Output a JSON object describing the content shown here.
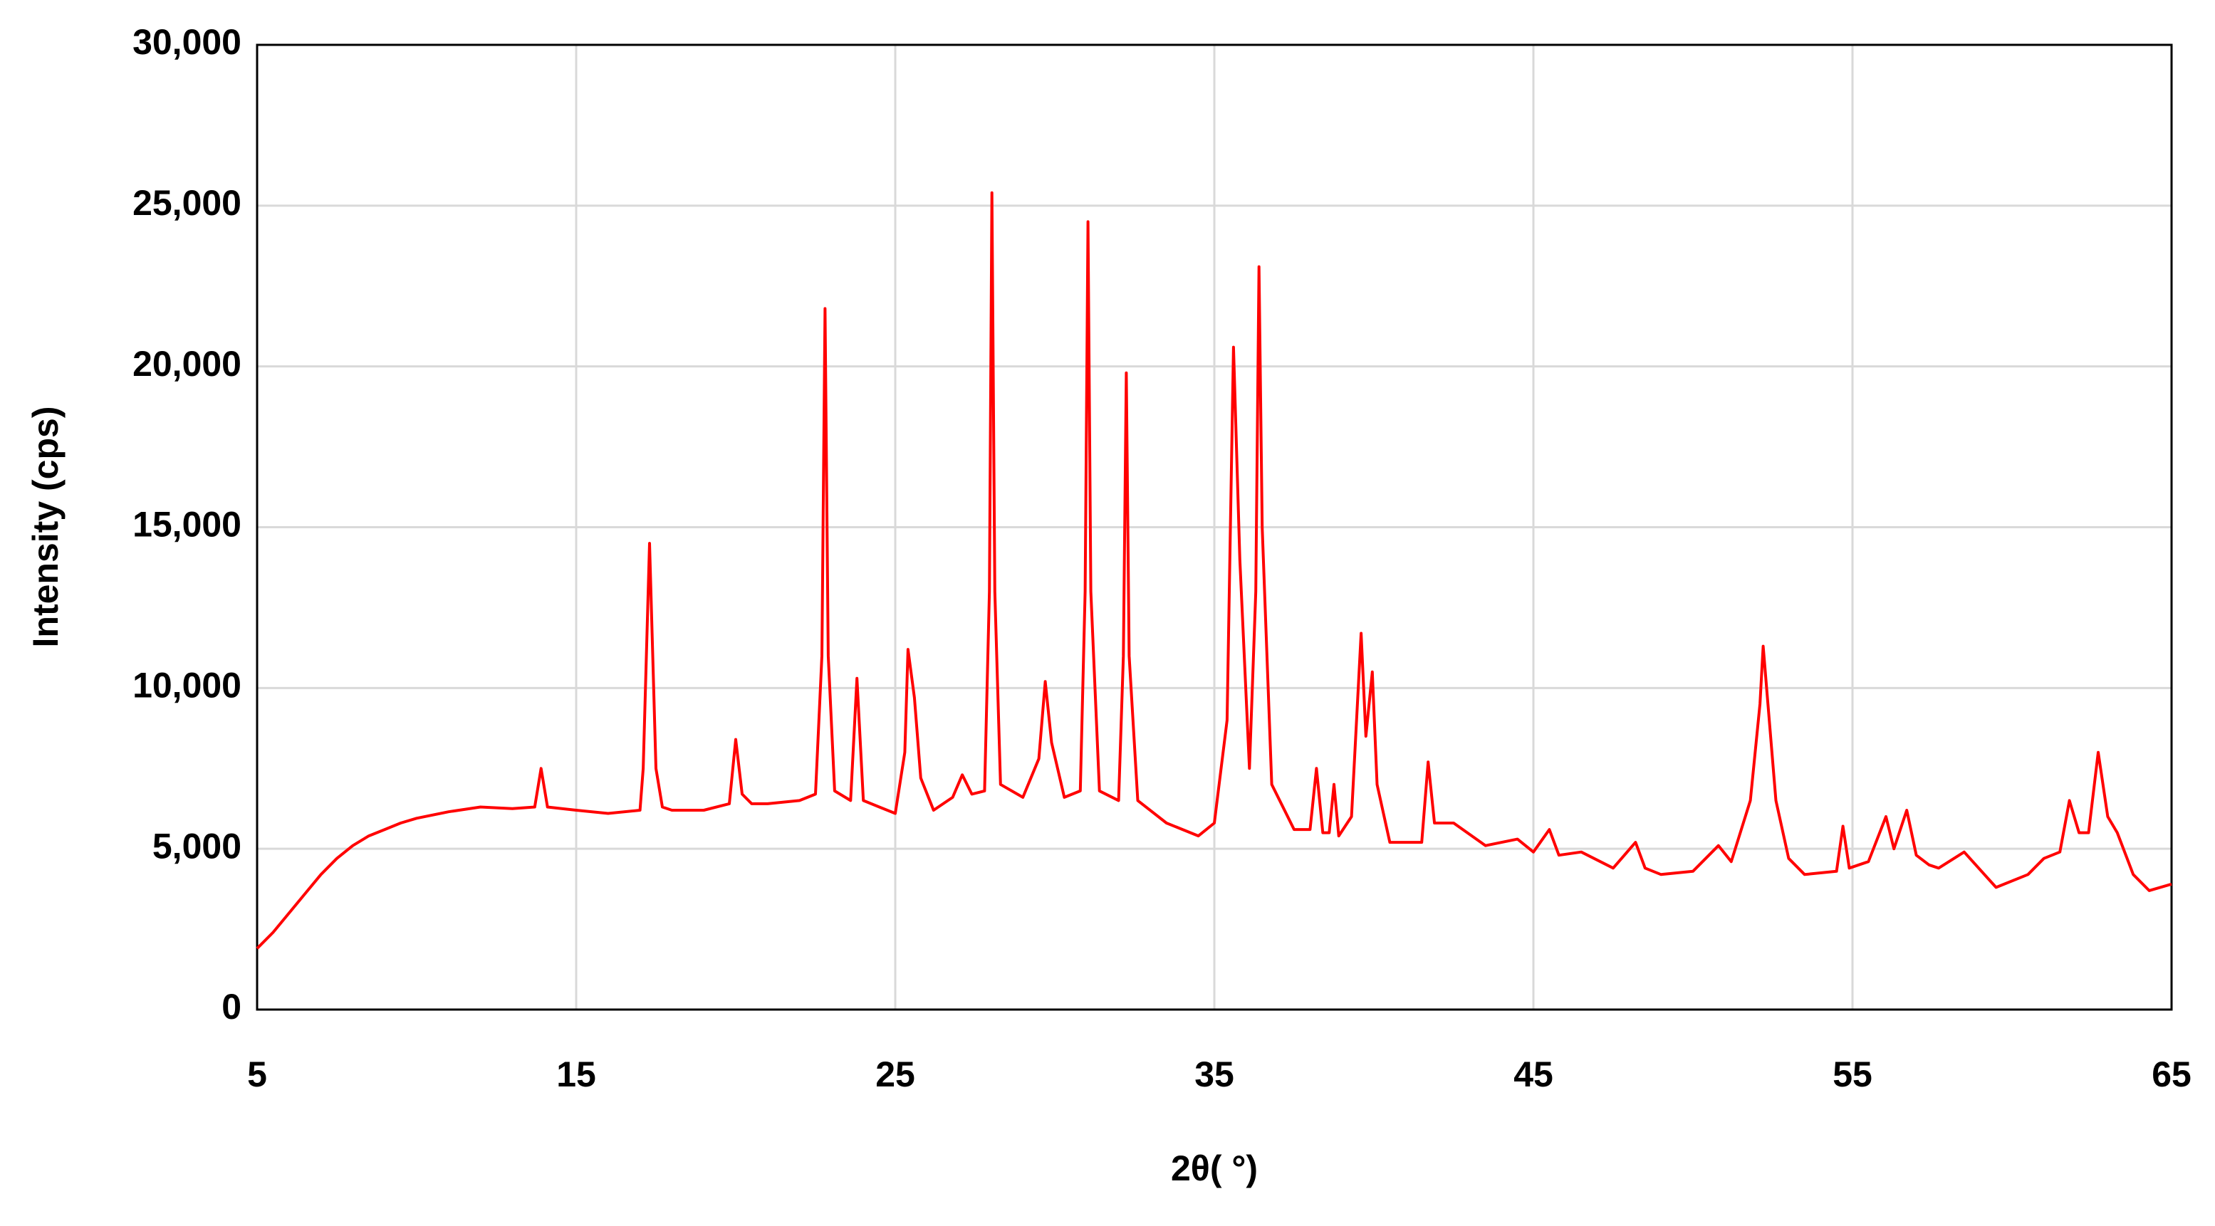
{
  "chart_data": {
    "type": "line",
    "xlabel": "2θ( °)",
    "ylabel": "Intensity (cps)",
    "x": [
      5,
      5.5,
      6,
      6.5,
      7,
      7.5,
      8,
      8.5,
      9,
      9.5,
      10,
      11,
      12,
      13,
      13.7,
      13.9,
      14.1,
      15,
      16,
      17,
      17.1,
      17.3,
      17.5,
      17.7,
      18,
      19,
      19.8,
      20,
      20.2,
      20.5,
      21,
      22,
      22.5,
      22.7,
      22.8,
      22.9,
      23.1,
      23.6,
      23.8,
      24.0,
      24.5,
      25,
      25.3,
      25.4,
      25.6,
      25.8,
      26.2,
      26.8,
      27.1,
      27.4,
      27.8,
      27.95,
      28.03,
      28.12,
      28.3,
      29,
      29.5,
      29.7,
      29.9,
      30.3,
      30.8,
      30.95,
      31.04,
      31.13,
      31.4,
      32.0,
      32.15,
      32.24,
      32.33,
      32.6,
      33.5,
      34.5,
      35.0,
      35.4,
      35.6,
      35.8,
      36.1,
      36.3,
      36.4,
      36.5,
      36.8,
      37.5,
      38.0,
      38.2,
      38.4,
      38.6,
      38.75,
      38.9,
      39.3,
      39.6,
      39.75,
      39.95,
      40.1,
      40.5,
      41.5,
      41.7,
      41.9,
      42.5,
      43.5,
      44.5,
      45,
      45.5,
      45.8,
      46.5,
      47.5,
      48.2,
      48.5,
      49,
      50,
      50.8,
      51.2,
      51.8,
      52.1,
      52.2,
      52.35,
      52.6,
      53,
      53.5,
      54.5,
      54.7,
      54.9,
      55.5,
      56.05,
      56.3,
      56.7,
      57.0,
      57.4,
      57.7,
      58.5,
      59.5,
      60.5,
      61,
      61.5,
      61.8,
      62.1,
      62.4,
      62.7,
      63.0,
      63.3,
      63.8,
      64.3,
      65
    ],
    "series": [
      {
        "color": "#ff0000",
        "values": [
          1900,
          2400,
          3000,
          3600,
          4200,
          4700,
          5100,
          5400,
          5600,
          5800,
          5950,
          6150,
          6300,
          6250,
          6300,
          7500,
          6300,
          6200,
          6100,
          6200,
          7500,
          14500,
          7500,
          6300,
          6200,
          6200,
          6400,
          8400,
          6700,
          6400,
          6400,
          6500,
          6700,
          11000,
          21800,
          11000,
          6800,
          6500,
          10300,
          6500,
          6300,
          6100,
          8000,
          11200,
          9700,
          7200,
          6200,
          6600,
          7300,
          6700,
          6800,
          13000,
          25400,
          13000,
          7000,
          6600,
          7800,
          10200,
          8300,
          6600,
          6800,
          13000,
          24500,
          13000,
          6800,
          6500,
          11000,
          19800,
          11000,
          6500,
          5800,
          5400,
          5800,
          9000,
          20600,
          14000,
          7500,
          13000,
          23100,
          15000,
          7000,
          5600,
          5600,
          7500,
          5500,
          5500,
          7000,
          5400,
          6000,
          11700,
          8500,
          10500,
          7000,
          5200,
          5200,
          7700,
          5800,
          5800,
          5100,
          5300,
          4900,
          5600,
          4800,
          4900,
          4400,
          5200,
          4400,
          4200,
          4300,
          5100,
          4600,
          6500,
          9500,
          11300,
          9500,
          6500,
          4700,
          4200,
          4300,
          5700,
          4400,
          4600,
          6000,
          5000,
          6200,
          4800,
          4500,
          4400,
          4900,
          3800,
          4200,
          4700,
          4900,
          6500,
          5500,
          5500,
          8000,
          6000,
          5500,
          4200,
          3700,
          3900
        ]
      }
    ],
    "xlim": [
      5,
      65
    ],
    "xticks": [
      5,
      15,
      25,
      35,
      45,
      55,
      65
    ],
    "ylim": [
      0,
      30000
    ],
    "yticks": [
      0,
      {
        "value": 5000,
        "label": "5,000"
      },
      {
        "value": 10000,
        "label": "10,000"
      },
      {
        "value": 15000,
        "label": "15,000"
      },
      {
        "value": 20000,
        "label": "20,000"
      },
      {
        "value": 25000,
        "label": "25,000"
      },
      {
        "value": 30000,
        "label": "30,000"
      }
    ],
    "grid": true
  }
}
